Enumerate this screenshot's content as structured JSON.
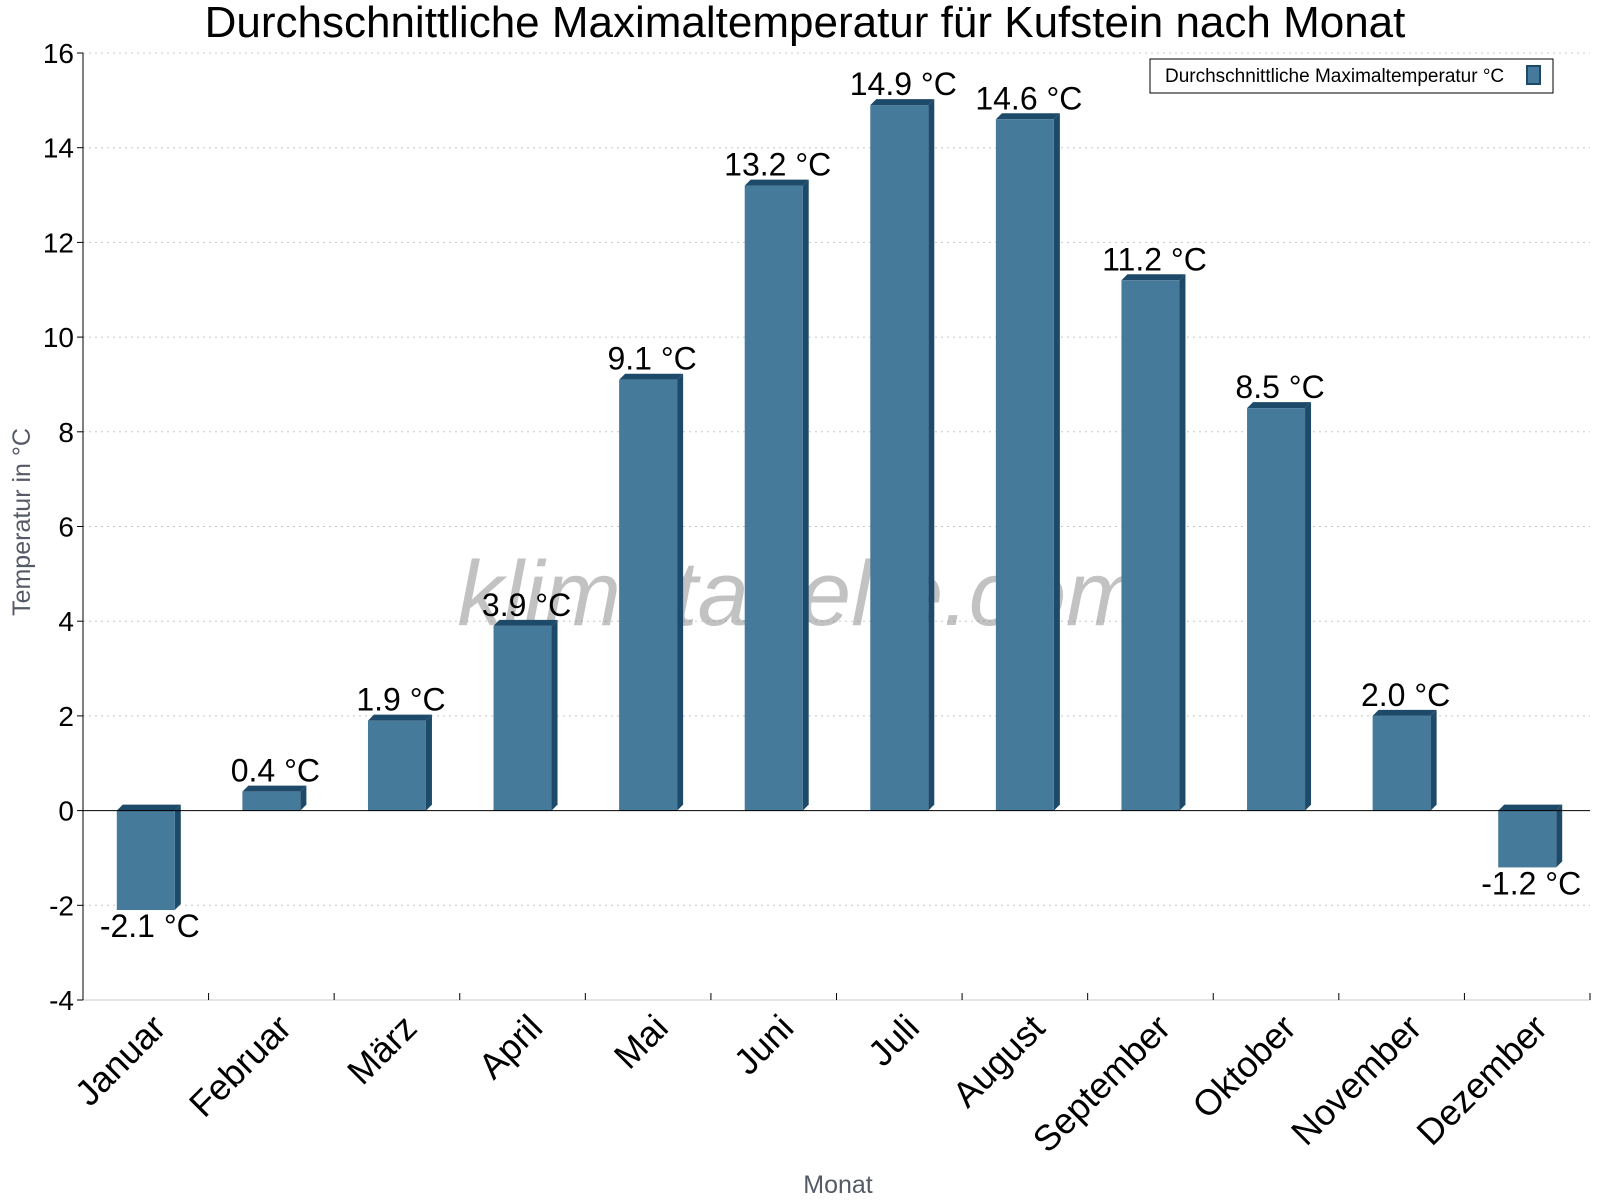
{
  "chart_data": {
    "type": "bar",
    "title": "Durchschnittliche Maximaltemperatur für Kufstein nach Monat",
    "xlabel": "Monat",
    "ylabel": "Temperatur in °C",
    "ylim": [
      -4,
      16
    ],
    "yticks": [
      -4,
      -2,
      0,
      2,
      4,
      6,
      8,
      10,
      12,
      14,
      16
    ],
    "grid": true,
    "legend_position": "top-right",
    "categories": [
      "Januar",
      "Februar",
      "März",
      "April",
      "Mai",
      "Juni",
      "Juli",
      "August",
      "September",
      "Oktober",
      "November",
      "Dezember"
    ],
    "series": [
      {
        "name": "Durchschnittliche Maximaltemperatur °C",
        "color": "#467a9b",
        "values": [
          -2.1,
          0.4,
          1.9,
          3.9,
          9.1,
          13.2,
          14.9,
          14.6,
          11.2,
          8.5,
          2.0,
          -1.2
        ],
        "labels": [
          "-2.1 °C",
          "0.4 °C",
          "1.9 °C",
          "3.9 °C",
          "9.1 °C",
          "13.2 °C",
          "14.9 °C",
          "14.6 °C",
          "11.2 °C",
          "8.5 °C",
          "2.0 °C",
          "-1.2 °C"
        ]
      }
    ],
    "bar_side_color": "#1e4a6a",
    "watermark": "klimatabelle.com"
  }
}
